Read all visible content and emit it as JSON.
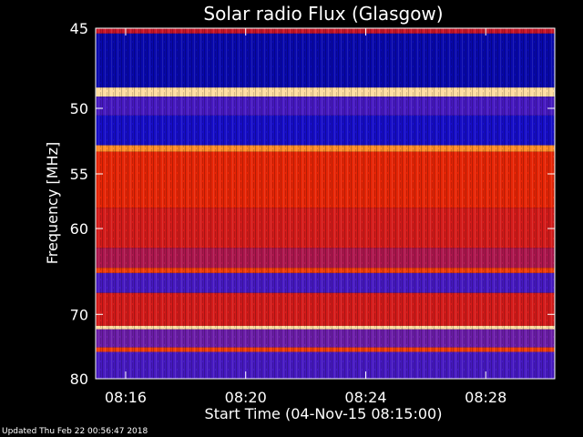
{
  "chart_data": {
    "type": "heatmap",
    "title": "Solar radio Flux (Glasgow)",
    "xlabel": "Start Time (04-Nov-15 08:15:00)",
    "ylabel": "Frequency [MHz]",
    "x_ticks": [
      "08:16",
      "08:20",
      "08:24",
      "08:28"
    ],
    "x_tick_minutes": [
      1,
      5,
      9,
      13
    ],
    "xlim_minutes": [
      0,
      15.3
    ],
    "y_ticks": [
      45,
      50,
      55,
      60,
      70,
      80
    ],
    "ylim": [
      45,
      80
    ],
    "yscale": "reciprocal",
    "colormap": "blue-red-yellow",
    "bands": [
      {
        "f0": 45,
        "f1": 45.3,
        "level": 0.55
      },
      {
        "f0": 45.3,
        "f1": 48.6,
        "level": 0.12
      },
      {
        "f0": 48.6,
        "f1": 49.2,
        "level": 0.98
      },
      {
        "f0": 49.2,
        "f1": 50.5,
        "level": 0.3
      },
      {
        "f0": 50.5,
        "f1": 52.7,
        "level": 0.18
      },
      {
        "f0": 52.7,
        "f1": 53.2,
        "level": 0.9
      },
      {
        "f0": 53.2,
        "f1": 58,
        "level": 0.72
      },
      {
        "f0": 58,
        "f1": 62,
        "level": 0.62
      },
      {
        "f0": 62,
        "f1": 64.2,
        "level": 0.5
      },
      {
        "f0": 64.2,
        "f1": 64.8,
        "level": 0.78
      },
      {
        "f0": 64.8,
        "f1": 67.2,
        "level": 0.3
      },
      {
        "f0": 67.2,
        "f1": 71.6,
        "level": 0.62
      },
      {
        "f0": 71.6,
        "f1": 72.1,
        "level": 0.98
      },
      {
        "f0": 72.1,
        "f1": 74.8,
        "level": 0.38
      },
      {
        "f0": 74.8,
        "f1": 75.5,
        "level": 0.78
      },
      {
        "f0": 75.5,
        "f1": 80,
        "level": 0.3
      }
    ]
  },
  "footer": "Updated Thu Feb 22 00:56:47 2018"
}
